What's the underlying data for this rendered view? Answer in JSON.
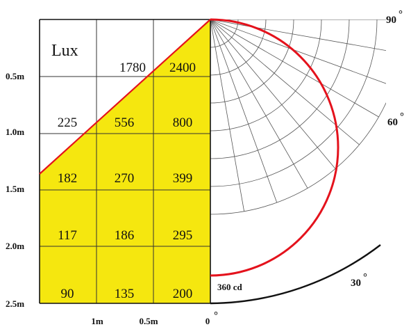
{
  "chart_data": {
    "type": "table",
    "title": "Lux",
    "cone_shading_color": "#f5e70f",
    "curve_color": "#e4121c",
    "row_labels": [
      "0.5m",
      "1.0m",
      "1.5m",
      "2.0m",
      "2.5m"
    ],
    "column_labels": [
      "1m",
      "0.5m",
      "0"
    ],
    "lux_grid": [
      [
        "",
        "1780",
        "2400"
      ],
      [
        "225",
        "556",
        "800"
      ],
      [
        "182",
        "270",
        "399"
      ],
      [
        "117",
        "186",
        "295"
      ],
      [
        "90",
        "135",
        "200"
      ]
    ],
    "polar": {
      "angle_labels": [
        "90",
        "60",
        "30",
        "0"
      ],
      "degree_symbol": "°",
      "peak_intensity_label": "360 cd",
      "curve_shape": "cosine (Lambertian) distribution",
      "angle_step_deg": 10
    }
  }
}
